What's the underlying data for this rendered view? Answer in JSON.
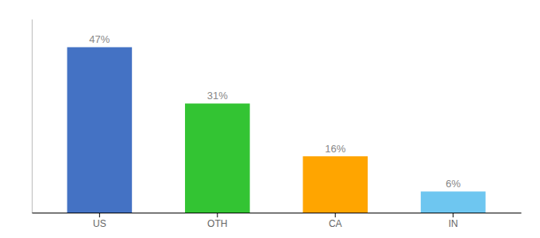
{
  "chart_data": {
    "type": "bar",
    "categories": [
      "US",
      "OTH",
      "CA",
      "IN"
    ],
    "values": [
      47,
      31,
      16,
      6
    ],
    "value_labels": [
      "47%",
      "31%",
      "16%",
      "6%"
    ],
    "colors": [
      "#4472C4",
      "#33C433",
      "#FFA500",
      "#6EC6F0"
    ],
    "ylim": [
      0,
      55
    ],
    "data_labels": true,
    "tick_labels": "x"
  }
}
